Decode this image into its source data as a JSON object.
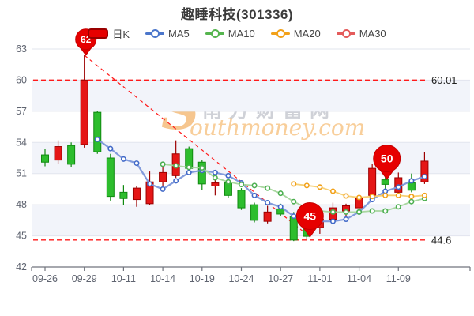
{
  "title": "趣睡科技(301336)",
  "legend": {
    "items": [
      {
        "label": "日K",
        "type": "candle",
        "color": "#e60000",
        "border": "#990000"
      },
      {
        "label": "MA5",
        "type": "line",
        "color": "#4b76cb"
      },
      {
        "label": "MA10",
        "type": "line",
        "color": "#55b54e"
      },
      {
        "label": "MA20",
        "type": "line",
        "color": "#f2a119"
      },
      {
        "label": "MA30",
        "type": "line",
        "color": "#e45b5b"
      }
    ]
  },
  "watermark": {
    "initial": "S",
    "cn": "南方财富网",
    "en": "outhmoney.com"
  },
  "chart_data": {
    "type": "candlestick",
    "ylim": [
      42,
      63
    ],
    "y_ticks": [
      42,
      45,
      48,
      51,
      54,
      57,
      60,
      63
    ],
    "x_labels": [
      {
        "i": 0,
        "label": "09-26"
      },
      {
        "i": 3,
        "label": "09-29"
      },
      {
        "i": 6,
        "label": "10-11"
      },
      {
        "i": 9,
        "label": "10-14"
      },
      {
        "i": 12,
        "label": "10-19"
      },
      {
        "i": 15,
        "label": "10-24"
      },
      {
        "i": 18,
        "label": "10-27"
      },
      {
        "i": 21,
        "label": "11-01"
      },
      {
        "i": 24,
        "label": "11-04"
      },
      {
        "i": 27,
        "label": "11-09"
      }
    ],
    "candles": [
      {
        "date": "09-26",
        "o": 52.8,
        "c": 52.1,
        "h": 53.4,
        "l": 51.7
      },
      {
        "date": "09-27",
        "o": 52.3,
        "c": 53.6,
        "h": 54.2,
        "l": 51.9
      },
      {
        "date": "09-28",
        "o": 53.7,
        "c": 51.9,
        "h": 54.0,
        "l": 51.6
      },
      {
        "date": "09-29",
        "o": 53.8,
        "c": 60.01,
        "h": 62.4,
        "l": 53.5
      },
      {
        "date": "09-30",
        "o": 56.9,
        "c": 53.1,
        "h": 57.0,
        "l": 52.9
      },
      {
        "date": "10-10",
        "o": 52.5,
        "c": 48.8,
        "h": 52.9,
        "l": 48.4
      },
      {
        "date": "10-11",
        "o": 49.2,
        "c": 48.6,
        "h": 49.9,
        "l": 48.0
      },
      {
        "date": "10-12",
        "o": 48.5,
        "c": 49.6,
        "h": 49.8,
        "l": 47.8
      },
      {
        "date": "10-13",
        "o": 48.1,
        "c": 50.2,
        "h": 51.2,
        "l": 48.0
      },
      {
        "date": "10-14",
        "o": 50.2,
        "c": 51.1,
        "h": 51.8,
        "l": 49.4
      },
      {
        "date": "10-17",
        "o": 50.8,
        "c": 52.9,
        "h": 54.2,
        "l": 50.6
      },
      {
        "date": "10-18",
        "o": 53.4,
        "c": 51.5,
        "h": 53.6,
        "l": 51.3
      },
      {
        "date": "10-19",
        "o": 52.1,
        "c": 50.0,
        "h": 52.3,
        "l": 49.4
      },
      {
        "date": "10-20",
        "o": 49.8,
        "c": 50.1,
        "h": 50.6,
        "l": 48.9
      },
      {
        "date": "10-21",
        "o": 50.1,
        "c": 48.9,
        "h": 50.4,
        "l": 48.7
      },
      {
        "date": "10-24",
        "o": 49.4,
        "c": 47.7,
        "h": 49.6,
        "l": 47.5
      },
      {
        "date": "10-25",
        "o": 48.0,
        "c": 46.5,
        "h": 48.2,
        "l": 46.3
      },
      {
        "date": "10-26",
        "o": 46.4,
        "c": 47.3,
        "h": 47.9,
        "l": 46.2
      },
      {
        "date": "10-27",
        "o": 47.6,
        "c": 47.1,
        "h": 48.1,
        "l": 46.9
      },
      {
        "date": "10-28",
        "o": 46.9,
        "c": 44.6,
        "h": 47.3,
        "l": 44.5
      },
      {
        "date": "10-31",
        "o": 45.8,
        "c": 44.96,
        "h": 46.0,
        "l": 44.7
      },
      {
        "date": "11-01",
        "o": 45.8,
        "c": 46.6,
        "h": 47.0,
        "l": 45.2
      },
      {
        "date": "11-02",
        "o": 46.6,
        "c": 47.7,
        "h": 48.2,
        "l": 46.4
      },
      {
        "date": "11-03",
        "o": 47.4,
        "c": 47.9,
        "h": 48.1,
        "l": 46.7
      },
      {
        "date": "11-04",
        "o": 47.7,
        "c": 48.6,
        "h": 48.8,
        "l": 47.3
      },
      {
        "date": "11-07",
        "o": 48.9,
        "c": 51.5,
        "h": 51.9,
        "l": 48.7
      },
      {
        "date": "11-08",
        "o": 50.4,
        "c": 49.96,
        "h": 53.7,
        "l": 49.4
      },
      {
        "date": "11-09",
        "o": 49.2,
        "c": 50.6,
        "h": 51.1,
        "l": 49.0
      },
      {
        "date": "11-10",
        "o": 50.1,
        "c": 49.4,
        "h": 51.0,
        "l": 49.2
      },
      {
        "date": "11-11",
        "o": 50.2,
        "c": 52.2,
        "h": 53.1,
        "l": 50.0
      }
    ],
    "series": [
      {
        "name": "MA5",
        "start_index": 4,
        "ring_color": "#4169c8",
        "line_color": "#7b96da",
        "values": [
          54.3,
          53.4,
          52.4,
          52.0,
          50.0,
          49.5,
          50.3,
          51.1,
          51.3,
          51.1,
          50.8,
          50.1,
          48.9,
          48.2,
          47.8,
          46.9,
          46.3,
          46.4,
          46.4,
          46.6,
          47.3,
          48.5,
          49.3,
          49.7,
          50.3,
          50.7
        ]
      },
      {
        "name": "MA10",
        "start_index": 9,
        "ring_color": "#4caf50",
        "line_color": "#a4d59b",
        "values": [
          51.9,
          51.75,
          51.6,
          51.55,
          50.6,
          50.2,
          49.95,
          49.85,
          49.6,
          49.1,
          48.3,
          47.7,
          47.4,
          47.3,
          47.3,
          47.3,
          47.4,
          47.4,
          47.8,
          48.3,
          48.6
        ]
      },
      {
        "name": "MA20",
        "start_index": 19,
        "ring_color": "#f2a119",
        "line_color": "#f7cd6e",
        "values": [
          50.0,
          49.85,
          49.7,
          49.3,
          48.85,
          48.7,
          48.8,
          48.9,
          48.9,
          48.8,
          48.9
        ]
      },
      {
        "name": "MA30",
        "start_index": null,
        "ring_color": "#e45b5b",
        "line_color": "#e45b5b",
        "values": []
      }
    ],
    "reference_lines": [
      {
        "value": 60.01,
        "label": "60.01"
      },
      {
        "value": 44.6,
        "label": "44.6"
      }
    ],
    "trend_line": {
      "from_index": 3,
      "from_value": 62.4,
      "to_index": 20,
      "to_value": 44.9
    },
    "annotations": [
      {
        "index": 3,
        "value": 62.4,
        "label": "62"
      },
      {
        "index": 20,
        "value": 44.9,
        "label": "45"
      },
      {
        "index": 26,
        "value": 50.45,
        "label": "50"
      }
    ],
    "colors": {
      "up_fill": "#e51616",
      "up_stroke": "#9c0000",
      "down_fill": "#2dbd2d",
      "down_stroke": "#108a10",
      "band": "#f2f4fa",
      "grid": "#e2e5ee",
      "axis": "#70747d",
      "label": "#5f6470",
      "ref_line": "#ff1a1a",
      "balloon": "#e60000",
      "balloon_edge": "#c40000",
      "ref_label": "#1f1f1f"
    }
  }
}
